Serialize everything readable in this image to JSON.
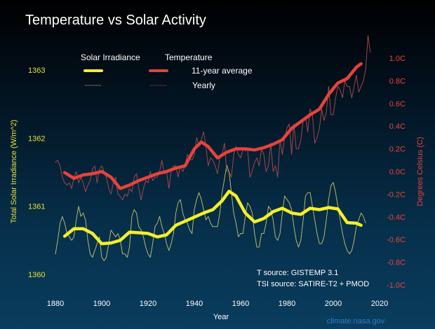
{
  "chart_data": {
    "type": "line",
    "title": "Temperature vs Solar Activity",
    "xlabel": "Year",
    "ylabel_left": "Total Solar Irradiance (W/m^2)",
    "ylabel_right": "Degrees Celsius (C)",
    "xlim": [
      1880,
      2020
    ],
    "ylim_left": [
      1360,
      1363
    ],
    "ylim_right": [
      -1.0,
      1.0
    ],
    "x_ticks": [
      "1880",
      "1900",
      "1920",
      "1940",
      "1960",
      "1980",
      "2000",
      "2020"
    ],
    "left_ticks": [
      "1363",
      "1362",
      "1361",
      "1360"
    ],
    "right_ticks": [
      "1.0C",
      "0.8C",
      "0.6C",
      "0.4C",
      "0.2C",
      "0.0C",
      "-0.2C",
      "-0.4C",
      "-0.6C",
      "-0.8C",
      "-1.0C"
    ],
    "grid": false,
    "legend": {
      "placement": "top-left",
      "col_solar": "Solar Irradiance",
      "col_temp": "Temperature",
      "row_avg": "11-year average",
      "row_yearly": "Yearly"
    },
    "colors": {
      "solar": "#f5ef2a",
      "solar_yearly": "#c8c46a",
      "temperature": "#e8423a",
      "temperature_yearly": "#b04a4a",
      "title": "#ffffff",
      "credit": "#2f7fc4"
    },
    "annotations": [
      "T source: GISTEMP 3.1",
      "TSI source: SATIRE-T2 + PMOD"
    ],
    "credit": "climate.nasa.gov",
    "series": [
      {
        "name": "Temperature Yearly",
        "axis": "right",
        "start_year": 1880,
        "values": [
          0.08,
          0.1,
          0.05,
          -0.05,
          -0.1,
          -0.12,
          -0.1,
          -0.15,
          -0.05,
          0.0,
          -0.1,
          -0.05,
          -0.1,
          -0.18,
          -0.12,
          -0.08,
          0.02,
          0.05,
          -0.1,
          0.02,
          0.05,
          0.0,
          -0.05,
          -0.15,
          -0.2,
          -0.1,
          -0.05,
          -0.2,
          -0.22,
          -0.25,
          -0.2,
          -0.22,
          -0.15,
          -0.18,
          -0.05,
          -0.02,
          -0.15,
          -0.25,
          -0.15,
          -0.08,
          -0.1,
          0.0,
          -0.08,
          -0.05,
          -0.05,
          0.0,
          0.1,
          -0.02,
          0.0,
          -0.15,
          0.0,
          0.05,
          0.05,
          -0.05,
          0.05,
          0.0,
          0.05,
          0.15,
          0.12,
          0.1,
          0.15,
          0.3,
          0.22,
          0.28,
          0.35,
          0.22,
          0.05,
          0.12,
          0.1,
          0.05,
          -0.02,
          0.12,
          0.15,
          0.25,
          0.0,
          0.0,
          -0.05,
          0.15,
          0.22,
          0.15,
          0.12,
          0.2,
          0.18,
          0.2,
          -0.05,
          0.0,
          0.08,
          0.12,
          0.05,
          0.2,
          0.15,
          0.0,
          0.05,
          0.25,
          0.0,
          0.05,
          -0.05,
          0.28,
          0.15,
          0.3,
          0.38,
          0.42,
          0.15,
          0.42,
          0.2,
          0.2,
          0.28,
          0.45,
          0.48,
          0.35,
          0.55,
          0.5,
          0.25,
          0.3,
          0.38,
          0.55,
          0.45,
          0.52,
          0.75,
          0.5,
          0.5,
          0.65,
          0.75,
          0.72,
          0.65,
          0.8,
          0.75,
          0.75,
          0.65,
          0.75,
          0.85,
          0.7,
          0.75,
          0.8,
          0.9,
          1.2,
          1.05
        ]
      },
      {
        "name": "Temperature 11-year average",
        "axis": "right",
        "x": [
          1884,
          1888,
          1892,
          1896,
          1900,
          1904,
          1908,
          1912,
          1916,
          1920,
          1924,
          1928,
          1932,
          1936,
          1940,
          1943,
          1946,
          1950,
          1954,
          1958,
          1962,
          1966,
          1970,
          1974,
          1978,
          1982,
          1986,
          1990,
          1994,
          1998,
          2002,
          2006,
          2010,
          2012
        ],
        "values": [
          -0.01,
          -0.06,
          -0.03,
          -0.02,
          0.0,
          -0.05,
          -0.15,
          -0.12,
          -0.08,
          -0.05,
          -0.02,
          0.0,
          0.03,
          0.05,
          0.2,
          0.26,
          0.22,
          0.12,
          0.17,
          0.2,
          0.2,
          0.19,
          0.21,
          0.24,
          0.28,
          0.38,
          0.44,
          0.5,
          0.55,
          0.68,
          0.78,
          0.82,
          0.92,
          0.95
        ]
      },
      {
        "name": "Solar Irradiance Yearly",
        "axis": "left",
        "start_year": 1880,
        "values": [
          1360.3,
          1360.5,
          1360.75,
          1360.85,
          1360.75,
          1360.6,
          1360.55,
          1360.5,
          1360.55,
          1360.8,
          1361.0,
          1360.85,
          1360.9,
          1360.8,
          1360.5,
          1360.3,
          1360.25,
          1360.35,
          1360.45,
          1360.55,
          1360.25,
          1360.2,
          1360.25,
          1360.45,
          1360.65,
          1360.6,
          1360.55,
          1360.6,
          1360.5,
          1360.3,
          1360.3,
          1360.25,
          1360.4,
          1360.85,
          1360.95,
          1360.9,
          1360.7,
          1360.65,
          1360.55,
          1360.4,
          1360.3,
          1360.25,
          1360.45,
          1360.7,
          1360.75,
          1360.85,
          1360.7,
          1360.6,
          1360.45,
          1360.35,
          1360.45,
          1360.6,
          1360.9,
          1361.05,
          1361.1,
          1360.9,
          1360.8,
          1360.75,
          1360.65,
          1360.6,
          1360.95,
          1361.1,
          1361.2,
          1361.1,
          1360.95,
          1360.8,
          1360.85,
          1360.75,
          1360.7,
          1360.7,
          1360.7,
          1360.9,
          1361.2,
          1361.4,
          1361.6,
          1361.5,
          1361.2,
          1360.9,
          1360.75,
          1360.55,
          1360.6,
          1360.6,
          1360.85,
          1361.05,
          1361.0,
          1360.9,
          1360.6,
          1360.4,
          1360.4,
          1360.6,
          1360.6,
          1360.75,
          1361.0,
          1360.95,
          1360.8,
          1360.55,
          1360.5,
          1360.6,
          1360.9,
          1361.15,
          1361.1,
          1361.05,
          1360.95,
          1360.7,
          1360.5,
          1360.4,
          1360.5,
          1360.8,
          1361.15,
          1361.2,
          1361.2,
          1361.0,
          1360.8,
          1360.6,
          1360.45,
          1360.45,
          1360.55,
          1360.8,
          1361.1,
          1361.3,
          1361.35,
          1361.2,
          1361.0,
          1360.8,
          1360.6,
          1360.45,
          1360.35,
          1360.3,
          1360.35,
          1360.5,
          1360.7,
          1360.8,
          1360.9,
          1360.85,
          1360.75
        ]
      },
      {
        "name": "Solar Irradiance 11-year average",
        "axis": "left",
        "x": [
          1884,
          1888,
          1892,
          1896,
          1900,
          1904,
          1908,
          1912,
          1916,
          1920,
          1924,
          1928,
          1932,
          1936,
          1940,
          1944,
          1948,
          1952,
          1955,
          1958,
          1962,
          1966,
          1970,
          1974,
          1978,
          1982,
          1986,
          1990,
          1994,
          1998,
          2002,
          2006,
          2010,
          2012
        ],
        "values": [
          1360.56,
          1360.67,
          1360.67,
          1360.6,
          1360.45,
          1360.46,
          1360.5,
          1360.62,
          1360.61,
          1360.6,
          1360.55,
          1360.58,
          1360.72,
          1360.78,
          1360.84,
          1360.9,
          1360.95,
          1361.08,
          1361.22,
          1361.15,
          1360.9,
          1360.77,
          1360.82,
          1360.92,
          1360.97,
          1360.9,
          1360.88,
          1360.97,
          1360.95,
          1360.98,
          1360.96,
          1360.76,
          1360.75,
          1360.72
        ]
      }
    ]
  }
}
